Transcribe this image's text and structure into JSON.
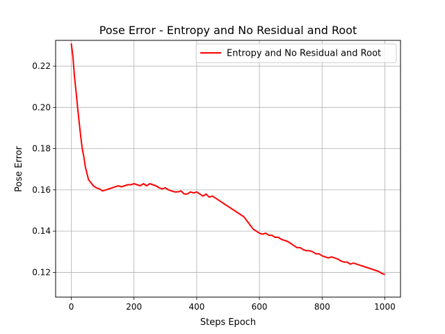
{
  "chart_data": {
    "type": "line",
    "title": "Pose Error - Entropy and No Residual and Root",
    "xlabel": "Steps Epoch",
    "ylabel": "Pose Error",
    "xlim": [
      -50,
      1050
    ],
    "ylim": [
      0.108,
      0.2325
    ],
    "x_ticks": [
      0,
      200,
      400,
      600,
      800,
      1000
    ],
    "x_tick_labels": [
      "0",
      "200",
      "400",
      "600",
      "800",
      "1000"
    ],
    "y_ticks": [
      0.12,
      0.14,
      0.16,
      0.18,
      0.2,
      0.22
    ],
    "y_tick_labels": [
      "0.12",
      "0.14",
      "0.16",
      "0.18",
      "0.20",
      "0.22"
    ],
    "grid": true,
    "legend_position": "top-right",
    "series": [
      {
        "name": "Entropy and No Residual and Root",
        "color": "#ff0000",
        "x": [
          0,
          5,
          10,
          15,
          20,
          25,
          30,
          35,
          40,
          45,
          50,
          55,
          60,
          65,
          70,
          80,
          90,
          100,
          110,
          120,
          130,
          140,
          150,
          160,
          170,
          180,
          190,
          200,
          210,
          220,
          230,
          240,
          250,
          260,
          270,
          280,
          290,
          300,
          310,
          320,
          330,
          340,
          350,
          360,
          370,
          380,
          390,
          400,
          410,
          420,
          430,
          440,
          450,
          460,
          470,
          480,
          490,
          500,
          510,
          520,
          530,
          540,
          550,
          560,
          570,
          580,
          590,
          600,
          610,
          620,
          630,
          640,
          650,
          660,
          670,
          680,
          690,
          700,
          710,
          720,
          730,
          740,
          750,
          760,
          770,
          780,
          790,
          800,
          810,
          820,
          830,
          840,
          850,
          860,
          870,
          880,
          890,
          900,
          910,
          920,
          930,
          940,
          950,
          960,
          970,
          980,
          990,
          1000
        ],
        "y": [
          0.231,
          0.225,
          0.215,
          0.208,
          0.2,
          0.193,
          0.186,
          0.18,
          0.176,
          0.171,
          0.168,
          0.165,
          0.164,
          0.163,
          0.162,
          0.161,
          0.1605,
          0.1595,
          0.16,
          0.1605,
          0.161,
          0.1615,
          0.162,
          0.1615,
          0.162,
          0.1625,
          0.1625,
          0.163,
          0.1625,
          0.162,
          0.163,
          0.162,
          0.163,
          0.1625,
          0.162,
          0.161,
          0.1605,
          0.161,
          0.16,
          0.1595,
          0.159,
          0.159,
          0.1595,
          0.158,
          0.158,
          0.159,
          0.1585,
          0.159,
          0.158,
          0.157,
          0.158,
          0.1565,
          0.157,
          0.156,
          0.155,
          0.154,
          0.153,
          0.152,
          0.151,
          0.15,
          0.149,
          0.148,
          0.147,
          0.145,
          0.143,
          0.141,
          0.14,
          0.139,
          0.1385,
          0.139,
          0.138,
          0.138,
          0.137,
          0.137,
          0.136,
          0.1355,
          0.135,
          0.134,
          0.133,
          0.132,
          0.132,
          0.131,
          0.1305,
          0.1305,
          0.13,
          0.129,
          0.129,
          0.128,
          0.1275,
          0.127,
          0.1275,
          0.127,
          0.1265,
          0.1255,
          0.125,
          0.125,
          0.124,
          0.1245,
          0.124,
          0.1235,
          0.123,
          0.1225,
          0.122,
          0.1215,
          0.121,
          0.1205,
          0.1195,
          0.119
        ]
      }
    ]
  }
}
